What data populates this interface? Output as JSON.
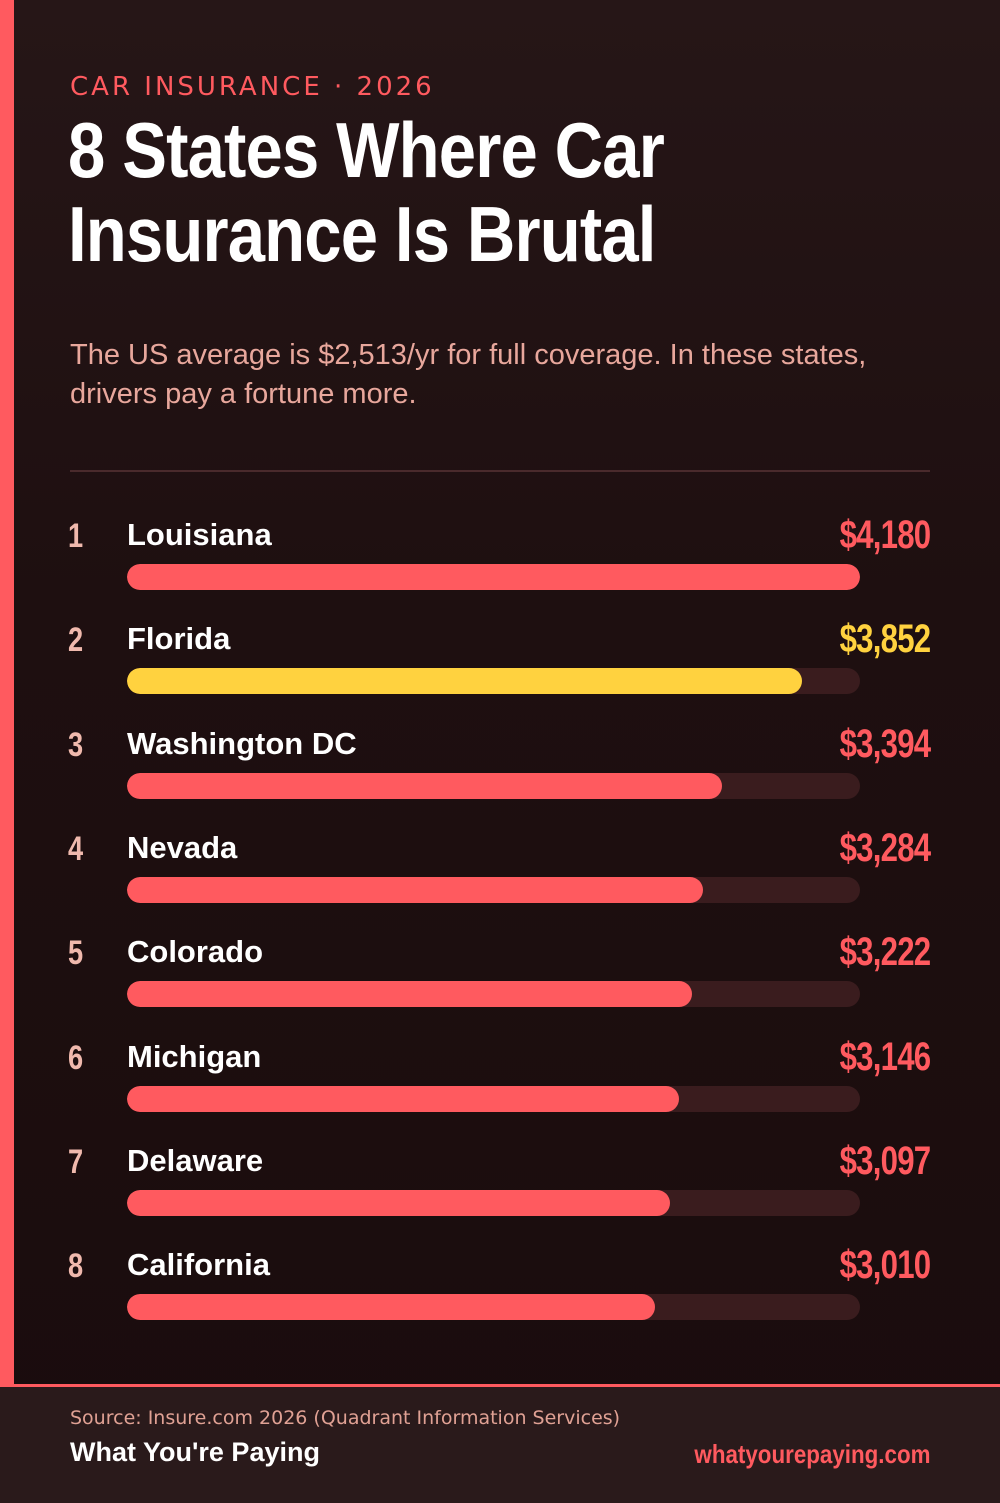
{
  "header": {
    "eyebrow": "CAR INSURANCE · 2026",
    "title": "8 States Where Car Insurance Is Brutal",
    "subtitle": "The US average is $2,513/yr for full coverage. In these states, drivers pay a fortune more."
  },
  "chart_data": {
    "type": "bar",
    "orientation": "horizontal",
    "title": "8 States Where Car Insurance Is Brutal",
    "xlim": [
      0,
      4180
    ],
    "categories": [
      "Louisiana",
      "Florida",
      "Washington DC",
      "Nevada",
      "Colorado",
      "Michigan",
      "Delaware",
      "California"
    ],
    "ranks": [
      "1",
      "2",
      "3",
      "4",
      "5",
      "6",
      "7",
      "8"
    ],
    "values": [
      4180,
      3852,
      3394,
      3284,
      3222,
      3146,
      3097,
      3010
    ],
    "value_labels": [
      "$4,180",
      "$3,852",
      "$3,394",
      "$3,284",
      "$3,222",
      "$3,146",
      "$3,097",
      "$3,010"
    ],
    "highlight_index": 1,
    "colors": {
      "bar": "#ff5a5f",
      "highlight": "#ffd23f",
      "track": "#3a1c1e"
    },
    "grid": false
  },
  "footer": {
    "source": "Source: Insure.com 2026 (Quadrant Information Services)",
    "brand": "What You're Paying",
    "url": "whatyourepaying.com"
  }
}
